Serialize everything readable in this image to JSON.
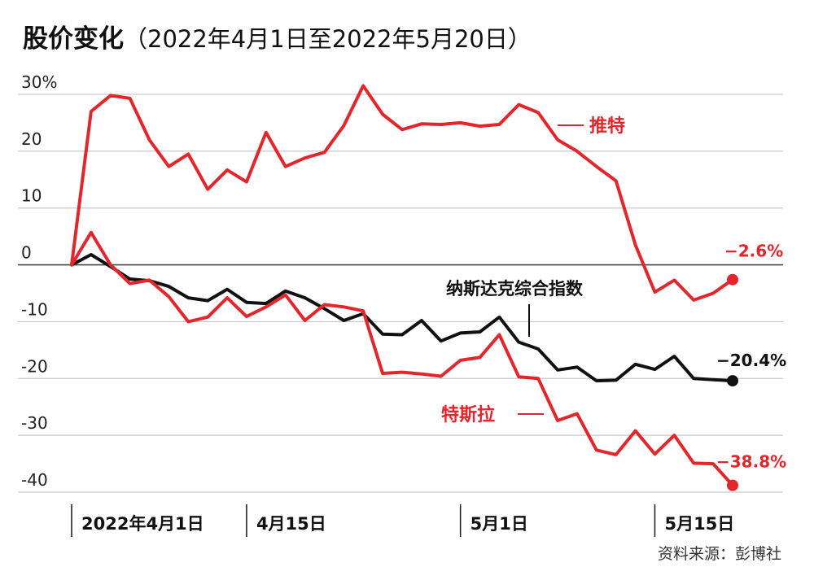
{
  "title": "股价变化",
  "subtitle": "（2022年4月1日至2022年5月20日）",
  "source": "资料来源：彭博社",
  "colors": {
    "red": "#e3262b",
    "black": "#111111",
    "grid": "#c9c9c9"
  },
  "chart_data": {
    "type": "line",
    "ylim": [
      -40,
      30
    ],
    "y_ticks": [
      {
        "value": 30,
        "label": "30%"
      },
      {
        "value": 20,
        "label": "20"
      },
      {
        "value": 10,
        "label": "10"
      },
      {
        "value": 0,
        "label": "0"
      },
      {
        "value": -10,
        "label": "-10"
      },
      {
        "value": -20,
        "label": "-20"
      },
      {
        "value": -30,
        "label": "-30"
      },
      {
        "value": -40,
        "label": "-40"
      }
    ],
    "x_ticks": [
      {
        "index": 0,
        "label": "2022年4月1日"
      },
      {
        "index": 9,
        "label": "4月15日"
      },
      {
        "index": 20,
        "label": "5月1日"
      },
      {
        "index": 30,
        "label": "5月15日"
      }
    ],
    "x_count": 35,
    "series": [
      {
        "name": "推特",
        "color": "#e3262b",
        "end_label": "−2.6%",
        "values": [
          0,
          27,
          29.8,
          29.3,
          22,
          17.3,
          19.5,
          13.3,
          16.7,
          14.6,
          23.3,
          17.3,
          18.8,
          19.8,
          24.5,
          31.5,
          26.5,
          23.8,
          24.8,
          24.7,
          25,
          24.4,
          24.7,
          28.2,
          26.8,
          22,
          20,
          17.3,
          14.8,
          3.5,
          -4.8,
          -2.7,
          -6.2,
          -5,
          -2.6
        ]
      },
      {
        "name": "纳斯达克综合指数",
        "color": "#111111",
        "end_label": "−20.4%",
        "values": [
          0,
          1.8,
          -0.3,
          -2.5,
          -2.8,
          -3.8,
          -5.8,
          -6.3,
          -4.3,
          -6.6,
          -6.8,
          -4.6,
          -5.8,
          -7.7,
          -9.8,
          -8.6,
          -12.2,
          -12.3,
          -9.8,
          -13.4,
          -12,
          -11.8,
          -9.2,
          -13.6,
          -14.8,
          -18.5,
          -18,
          -20.4,
          -20.3,
          -17.5,
          -18.4,
          -16.1,
          -20,
          -20.2,
          -20.4
        ]
      },
      {
        "name": "特斯拉",
        "color": "#e3262b",
        "end_label": "−38.8%",
        "values": [
          0,
          5.7,
          0,
          -3.3,
          -2.7,
          -5.6,
          -10,
          -9.2,
          -5.8,
          -9.1,
          -7.4,
          -5.3,
          -9.8,
          -7,
          -7.4,
          -8.1,
          -19.1,
          -18.9,
          -19.2,
          -19.6,
          -16.8,
          -16.3,
          -12.3,
          -19.7,
          -20,
          -27.4,
          -26.2,
          -32.6,
          -33.4,
          -29.2,
          -33.3,
          -30,
          -34.9,
          -35,
          -38.8
        ]
      }
    ]
  }
}
